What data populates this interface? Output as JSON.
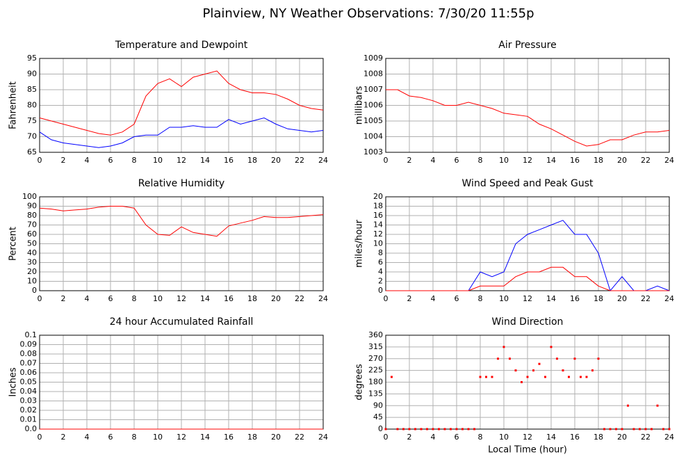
{
  "title": "Plainview, NY Weather Observations: 7/30/20 11:55p",
  "chart_data": [
    {
      "type": "line",
      "title": "Temperature and Dewpoint",
      "ylabel": "Fahrenheit",
      "x": [
        0,
        1,
        2,
        3,
        4,
        5,
        6,
        7,
        8,
        9,
        10,
        11,
        12,
        13,
        14,
        15,
        16,
        17,
        18,
        19,
        20,
        21,
        22,
        23,
        24
      ],
      "series": [
        {
          "color": "#ff0000",
          "values": [
            76,
            75,
            74,
            73,
            72,
            71,
            70.5,
            71.5,
            74,
            83,
            87,
            88.5,
            86,
            89,
            90,
            91,
            87,
            85,
            84,
            84,
            83.5,
            82,
            80,
            79,
            78.5
          ]
        },
        {
          "color": "#0000ff",
          "values": [
            71.5,
            69,
            68,
            67.5,
            67,
            66.5,
            67,
            68,
            70,
            70.5,
            70.5,
            73,
            73,
            73.5,
            73,
            73,
            75.5,
            74,
            75,
            76,
            74,
            72.5,
            72,
            71.5,
            72
          ]
        }
      ],
      "xlim": [
        0,
        24
      ],
      "xticks": [
        0,
        2,
        4,
        6,
        8,
        10,
        12,
        14,
        16,
        18,
        20,
        22,
        24
      ],
      "ylim": [
        65,
        95
      ],
      "yticks": [
        65,
        70,
        75,
        80,
        85,
        90,
        95
      ],
      "grid": true
    },
    {
      "type": "line",
      "title": "Air Pressure",
      "ylabel": "millibars",
      "x": [
        0,
        1,
        2,
        3,
        4,
        5,
        6,
        7,
        8,
        9,
        10,
        11,
        12,
        13,
        14,
        15,
        16,
        17,
        18,
        19,
        20,
        21,
        22,
        23,
        24
      ],
      "series": [
        {
          "color": "#ff0000",
          "values": [
            1007,
            1007,
            1006.6,
            1006.5,
            1006.3,
            1006,
            1006,
            1006.2,
            1006,
            1005.8,
            1005.5,
            1005.4,
            1005.3,
            1004.8,
            1004.5,
            1004.1,
            1003.7,
            1003.4,
            1003.5,
            1003.8,
            1003.8,
            1004.1,
            1004.3,
            1004.3,
            1004.4
          ]
        }
      ],
      "xlim": [
        0,
        24
      ],
      "xticks": [
        0,
        2,
        4,
        6,
        8,
        10,
        12,
        14,
        16,
        18,
        20,
        22,
        24
      ],
      "ylim": [
        1003,
        1009
      ],
      "yticks": [
        1003,
        1004,
        1005,
        1006,
        1007,
        1008,
        1009
      ],
      "grid": true
    },
    {
      "type": "line",
      "title": "Relative Humidity",
      "ylabel": "Percent",
      "x": [
        0,
        1,
        2,
        3,
        4,
        5,
        6,
        7,
        8,
        9,
        10,
        11,
        12,
        13,
        14,
        15,
        16,
        17,
        18,
        19,
        20,
        21,
        22,
        23,
        24
      ],
      "series": [
        {
          "color": "#ff0000",
          "values": [
            88,
            87,
            85,
            86,
            87,
            89,
            90,
            90,
            88,
            70,
            60,
            59,
            68,
            62,
            60,
            58,
            69,
            72,
            75,
            79,
            78,
            78,
            79,
            80,
            81
          ]
        }
      ],
      "xlim": [
        0,
        24
      ],
      "xticks": [
        0,
        2,
        4,
        6,
        8,
        10,
        12,
        14,
        16,
        18,
        20,
        22,
        24
      ],
      "ylim": [
        0,
        100
      ],
      "yticks": [
        0,
        10,
        20,
        30,
        40,
        50,
        60,
        70,
        80,
        90,
        100
      ],
      "grid": true
    },
    {
      "type": "line",
      "title": "Wind Speed and Peak Gust",
      "ylabel": "miles/hour",
      "x": [
        0,
        1,
        2,
        3,
        4,
        5,
        6,
        7,
        8,
        9,
        10,
        11,
        12,
        13,
        14,
        15,
        16,
        17,
        18,
        19,
        20,
        21,
        22,
        23,
        24
      ],
      "series": [
        {
          "color": "#0000ff",
          "values": [
            0,
            0,
            0,
            0,
            0,
            0,
            0,
            0,
            4,
            3,
            4,
            10,
            12,
            13,
            14,
            15,
            12,
            12,
            8,
            0,
            3,
            0,
            0,
            1,
            0
          ]
        },
        {
          "color": "#ff0000",
          "values": [
            0,
            0,
            0,
            0,
            0,
            0,
            0,
            0,
            1,
            1,
            1,
            3,
            4,
            4,
            5,
            5,
            3,
            3,
            1,
            0,
            0,
            0,
            0,
            0,
            0
          ]
        }
      ],
      "xlim": [
        0,
        24
      ],
      "xticks": [
        0,
        2,
        4,
        6,
        8,
        10,
        12,
        14,
        16,
        18,
        20,
        22,
        24
      ],
      "ylim": [
        0,
        20
      ],
      "yticks": [
        0,
        2,
        4,
        6,
        8,
        10,
        12,
        14,
        16,
        18,
        20
      ],
      "grid": true
    },
    {
      "type": "line",
      "title": "24 hour Accumulated Rainfall",
      "ylabel": "Inches",
      "x": [
        0,
        24
      ],
      "series": [
        {
          "color": "#ff0000",
          "values": [
            0,
            0
          ]
        }
      ],
      "xlim": [
        0,
        24
      ],
      "xticks": [
        0,
        2,
        4,
        6,
        8,
        10,
        12,
        14,
        16,
        18,
        20,
        22,
        24
      ],
      "ylim": [
        0,
        0.1
      ],
      "yticks": [
        {
          "value": 0,
          "label": "0.0"
        },
        0.01,
        0.02,
        0.03,
        0.04,
        0.05,
        0.06,
        0.07,
        0.08,
        0.09,
        0.1
      ],
      "grid": true
    },
    {
      "type": "scatter",
      "title": "Wind Direction",
      "ylabel": "degrees",
      "xlabel": "Local Time (hour)",
      "x": [
        0,
        0.5,
        1,
        1.5,
        2,
        2.5,
        3,
        3.5,
        4,
        4.5,
        5,
        5.5,
        6,
        6.5,
        7,
        7.5,
        8,
        8.5,
        9,
        9.5,
        10,
        10.5,
        11,
        11.5,
        12,
        12.5,
        13,
        13.5,
        14,
        14.5,
        15,
        15.5,
        16,
        16.5,
        17,
        17.5,
        18,
        18.5,
        19,
        19.5,
        20,
        20.5,
        21,
        21.5,
        22,
        22.5,
        23,
        23.5,
        24
      ],
      "values": [
        0,
        200,
        0,
        0,
        0,
        0,
        0,
        0,
        0,
        0,
        0,
        0,
        0,
        0,
        0,
        0,
        200,
        200,
        200,
        270,
        315,
        270,
        225,
        180,
        200,
        225,
        250,
        200,
        315,
        270,
        225,
        200,
        270,
        200,
        200,
        225,
        270,
        0,
        0,
        0,
        0,
        90,
        0,
        0,
        0,
        0,
        90,
        0,
        0
      ],
      "color": "#ff0000",
      "xlim": [
        0,
        24
      ],
      "xticks": [
        0,
        2,
        4,
        6,
        8,
        10,
        12,
        14,
        16,
        18,
        20,
        22,
        24
      ],
      "ylim": [
        0,
        360
      ],
      "yticks": [
        0,
        45,
        90,
        135,
        180,
        225,
        270,
        315,
        360
      ],
      "grid": true
    }
  ]
}
